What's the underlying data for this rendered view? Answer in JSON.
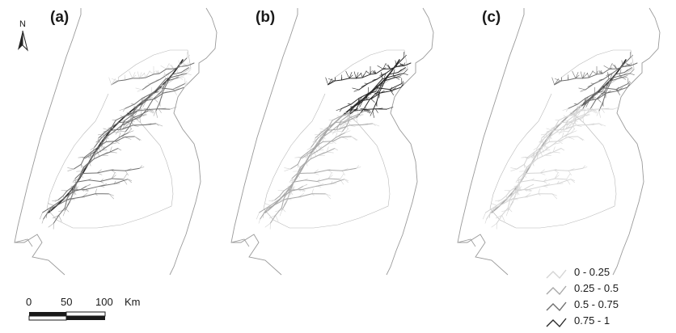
{
  "panels": [
    {
      "label": "(a)"
    },
    {
      "label": "(b)"
    },
    {
      "label": "(c)"
    }
  ],
  "north_arrow": {
    "letter": "N"
  },
  "scale_bar": {
    "ticks": [
      "0",
      "50",
      "100"
    ],
    "unit": "Km"
  },
  "legend": {
    "classes": [
      {
        "label": "0 - 0.25",
        "color": "#d4d4d4"
      },
      {
        "label": "0.25 - 0.5",
        "color": "#a8a8a8"
      },
      {
        "label": "0.5 - 0.75",
        "color": "#6e6e6e"
      },
      {
        "label": "0.75 - 1",
        "color": "#2a2a2a"
      }
    ]
  }
}
